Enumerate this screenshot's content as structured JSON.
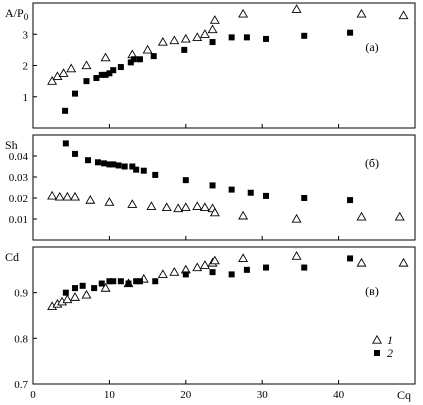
{
  "chart_data": [
    {
      "type": "scatter",
      "panel": "(а)",
      "ylabel": "A/P",
      "ylabel_sub": "0",
      "ylim": [
        0,
        4
      ],
      "yticks": [
        1,
        2,
        3
      ],
      "xlim": [
        0,
        50
      ],
      "series": [
        {
          "name": "1",
          "marker": "open-triangle",
          "x": [
            2.5,
            3.2,
            4.0,
            5.0,
            7.0,
            9.5,
            13.0,
            15.0,
            17.0,
            18.5,
            20.0,
            21.5,
            22.5,
            23.5,
            23.8,
            27.5,
            34.5,
            43.0,
            48.5
          ],
          "y": [
            1.5,
            1.65,
            1.75,
            1.9,
            2.0,
            2.25,
            2.35,
            2.5,
            2.75,
            2.8,
            2.85,
            2.9,
            3.0,
            3.15,
            3.45,
            3.65,
            3.8,
            3.65,
            3.6
          ]
        },
        {
          "name": "2",
          "marker": "filled-square",
          "x": [
            4.2,
            5.5,
            7.0,
            8.3,
            9.0,
            9.5,
            10.0,
            10.5,
            11.5,
            12.8,
            13.2,
            14.0,
            15.8,
            19.8,
            23.5,
            26.0,
            28.0,
            30.5,
            35.5,
            41.5
          ],
          "y": [
            0.55,
            1.1,
            1.5,
            1.6,
            1.7,
            1.7,
            1.75,
            1.85,
            1.95,
            2.1,
            2.2,
            2.2,
            2.3,
            2.5,
            2.75,
            2.9,
            2.9,
            2.85,
            2.95,
            3.05
          ]
        }
      ]
    },
    {
      "type": "scatter",
      "panel": "(б)",
      "ylabel": "Sh",
      "ylim": [
        0,
        0.05
      ],
      "yticks": [
        0.01,
        0.02,
        0.03,
        0.04
      ],
      "ytick_labels": [
        "0.01",
        "0.02",
        "0.03",
        "0.04"
      ],
      "xlim": [
        0,
        50
      ],
      "series": [
        {
          "name": "1",
          "marker": "open-triangle",
          "x": [
            2.5,
            3.5,
            4.5,
            5.5,
            7.5,
            10.0,
            13.0,
            15.5,
            17.5,
            19.0,
            20.0,
            21.5,
            22.5,
            23.5,
            23.8,
            27.5,
            34.5,
            43.0,
            48.0
          ],
          "y": [
            0.021,
            0.0205,
            0.0205,
            0.0205,
            0.019,
            0.018,
            0.017,
            0.016,
            0.0155,
            0.015,
            0.0155,
            0.016,
            0.0155,
            0.015,
            0.013,
            0.0115,
            0.01,
            0.011,
            0.011
          ]
        },
        {
          "name": "2",
          "marker": "filled-square",
          "x": [
            4.3,
            5.5,
            7.2,
            8.5,
            9.3,
            10.0,
            10.5,
            11.2,
            12.0,
            13.0,
            13.5,
            14.5,
            16.0,
            20.0,
            23.5,
            26.0,
            28.5,
            30.5,
            35.5,
            41.5
          ],
          "y": [
            0.046,
            0.041,
            0.038,
            0.037,
            0.0365,
            0.036,
            0.036,
            0.0355,
            0.035,
            0.035,
            0.0335,
            0.033,
            0.031,
            0.0285,
            0.026,
            0.024,
            0.0225,
            0.021,
            0.02,
            0.019
          ]
        }
      ]
    },
    {
      "type": "scatter",
      "panel": "(в)",
      "ylabel": "Cd",
      "ylim": [
        0.7,
        1.0
      ],
      "yticks": [
        0.7,
        0.8,
        0.9
      ],
      "ytick_labels": [
        "0.7",
        "0.8",
        "0.9"
      ],
      "xlim": [
        0,
        50
      ],
      "xticks": [
        0,
        10,
        20,
        30,
        40
      ],
      "xlabel": "Cq",
      "series": [
        {
          "name": "1",
          "marker": "open-triangle",
          "x": [
            2.5,
            3.2,
            3.8,
            4.5,
            5.5,
            7.0,
            9.5,
            12.5,
            14.5,
            17.0,
            18.5,
            20.0,
            21.5,
            22.5,
            23.5,
            23.8,
            27.5,
            34.5,
            43.0,
            48.5
          ],
          "y": [
            0.87,
            0.875,
            0.88,
            0.885,
            0.89,
            0.895,
            0.91,
            0.92,
            0.93,
            0.94,
            0.945,
            0.95,
            0.955,
            0.96,
            0.965,
            0.97,
            0.975,
            0.98,
            0.965,
            0.965
          ]
        },
        {
          "name": "2",
          "marker": "filled-square",
          "x": [
            4.3,
            5.5,
            6.5,
            8.0,
            9.0,
            10.0,
            10.5,
            11.5,
            12.5,
            13.5,
            14.0,
            16.0,
            20.0,
            23.5,
            26.0,
            28.0,
            30.5,
            35.5,
            41.5
          ],
          "y": [
            0.9,
            0.91,
            0.915,
            0.91,
            0.92,
            0.925,
            0.925,
            0.925,
            0.92,
            0.925,
            0.925,
            0.925,
            0.94,
            0.945,
            0.94,
            0.95,
            0.955,
            0.955,
            0.975
          ]
        }
      ],
      "legend": {
        "placement": "bottom-right",
        "entries": [
          "1",
          "2"
        ]
      }
    }
  ]
}
